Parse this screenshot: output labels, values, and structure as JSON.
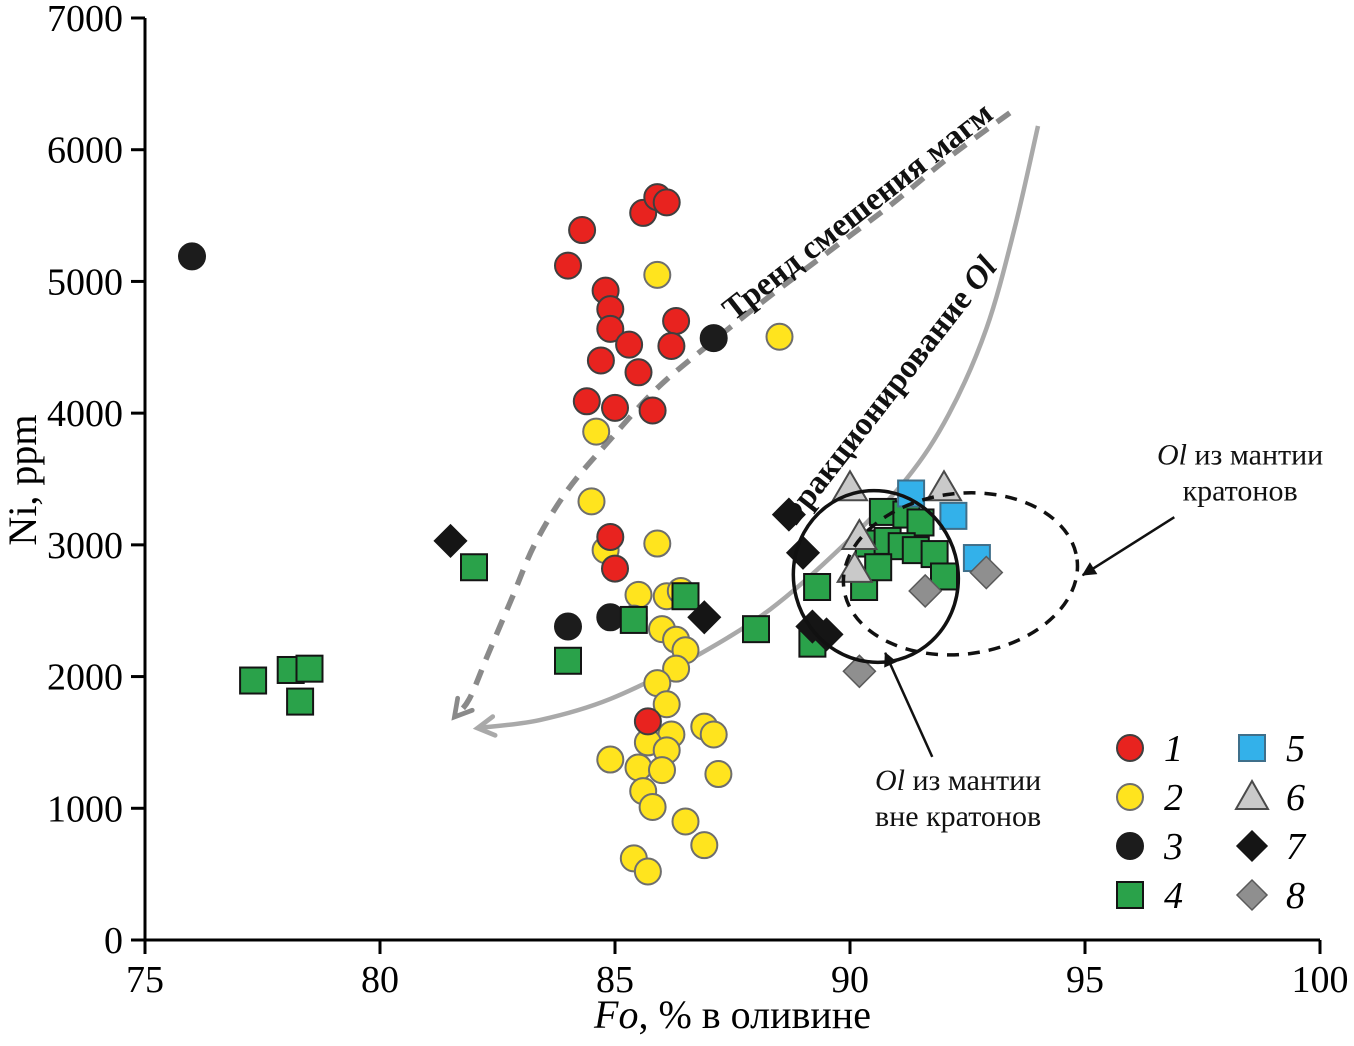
{
  "chart_data": {
    "type": "scatter",
    "title": "",
    "xlabel_italic": "Fo",
    "xlabel_rest": ", % в оливине",
    "ylabel": "Ni, ppm",
    "xlim": [
      75,
      100
    ],
    "ylim": [
      0,
      7000
    ],
    "xticks": [
      75,
      80,
      85,
      90,
      95,
      100
    ],
    "yticks": [
      0,
      1000,
      2000,
      3000,
      4000,
      5000,
      6000,
      7000
    ],
    "grid": false,
    "series": [
      {
        "name": "1",
        "marker": "circle",
        "fill": "#e8231f",
        "stroke": "#3f3f3f",
        "points": [
          [
            84.3,
            5390
          ],
          [
            84.0,
            5120
          ],
          [
            85.6,
            5520
          ],
          [
            85.9,
            5640
          ],
          [
            86.1,
            5600
          ],
          [
            84.8,
            4930
          ],
          [
            84.9,
            4790
          ],
          [
            84.9,
            4640
          ],
          [
            86.3,
            4700
          ],
          [
            85.3,
            4520
          ],
          [
            86.2,
            4510
          ],
          [
            84.7,
            4400
          ],
          [
            85.5,
            4310
          ],
          [
            84.4,
            4090
          ],
          [
            85.0,
            4040
          ],
          [
            85.8,
            4020
          ],
          [
            84.9,
            3060
          ],
          [
            85.0,
            2820
          ],
          [
            85.7,
            1660
          ]
        ]
      },
      {
        "name": "2",
        "marker": "circle",
        "fill": "#ffe41e",
        "stroke": "#6e6e6e",
        "points": [
          [
            85.9,
            5050
          ],
          [
            88.5,
            4580
          ],
          [
            84.6,
            3860
          ],
          [
            84.5,
            3330
          ],
          [
            85.9,
            3010
          ],
          [
            84.8,
            2960
          ],
          [
            85.5,
            2620
          ],
          [
            86.1,
            2610
          ],
          [
            86.4,
            2650
          ],
          [
            85.4,
            2440
          ],
          [
            86.0,
            2360
          ],
          [
            86.3,
            2280
          ],
          [
            86.5,
            2200
          ],
          [
            86.3,
            2060
          ],
          [
            85.9,
            1950
          ],
          [
            86.1,
            1790
          ],
          [
            86.9,
            1620
          ],
          [
            86.2,
            1560
          ],
          [
            85.7,
            1500
          ],
          [
            86.1,
            1440
          ],
          [
            87.1,
            1560
          ],
          [
            84.9,
            1370
          ],
          [
            85.5,
            1310
          ],
          [
            86.0,
            1290
          ],
          [
            87.2,
            1260
          ],
          [
            85.6,
            1130
          ],
          [
            85.8,
            1010
          ],
          [
            86.5,
            900
          ],
          [
            86.9,
            720
          ],
          [
            85.4,
            620
          ],
          [
            85.7,
            520
          ]
        ]
      },
      {
        "name": "3",
        "marker": "circle",
        "fill": "#1c1c1c",
        "stroke": "#1c1c1c",
        "points": [
          [
            76.0,
            5190
          ],
          [
            87.1,
            4570
          ],
          [
            84.0,
            2380
          ],
          [
            84.9,
            2450
          ]
        ]
      },
      {
        "name": "4",
        "marker": "square",
        "fill": "#2aa24a",
        "stroke": "#141414",
        "points": [
          [
            77.3,
            1970
          ],
          [
            78.1,
            2050
          ],
          [
            78.5,
            2060
          ],
          [
            78.3,
            1810
          ],
          [
            82.0,
            2830
          ],
          [
            84.0,
            2120
          ],
          [
            85.4,
            2430
          ],
          [
            86.5,
            2610
          ],
          [
            88.0,
            2360
          ],
          [
            89.2,
            2250
          ],
          [
            89.3,
            2680
          ],
          [
            90.3,
            2680
          ],
          [
            90.7,
            3250
          ],
          [
            91.2,
            3230
          ],
          [
            91.5,
            3170
          ],
          [
            90.4,
            3010
          ],
          [
            90.8,
            3030
          ],
          [
            91.1,
            2990
          ],
          [
            91.4,
            2960
          ],
          [
            91.8,
            2930
          ],
          [
            90.6,
            2830
          ],
          [
            92.0,
            2760
          ]
        ]
      },
      {
        "name": "5",
        "marker": "square",
        "fill": "#33b1ea",
        "stroke": "#3f6f8a",
        "points": [
          [
            91.3,
            3390
          ],
          [
            92.2,
            3220
          ],
          [
            92.7,
            2900
          ]
        ]
      },
      {
        "name": "6",
        "marker": "triangle",
        "fill": "#c9c9c9",
        "stroke": "#4a4a4a",
        "points": [
          [
            90.0,
            3430
          ],
          [
            92.0,
            3430
          ],
          [
            90.2,
            3060
          ],
          [
            90.1,
            2810
          ]
        ]
      },
      {
        "name": "7",
        "marker": "diamond",
        "fill": "#151515",
        "stroke": "#151515",
        "points": [
          [
            81.5,
            3030
          ],
          [
            88.7,
            3230
          ],
          [
            89.0,
            2940
          ],
          [
            86.9,
            2450
          ],
          [
            89.2,
            2380
          ],
          [
            89.5,
            2320
          ]
        ]
      },
      {
        "name": "8",
        "marker": "diamond",
        "fill": "#8f8f8f",
        "stroke": "#5a5a5a",
        "points": [
          [
            91.6,
            2650
          ],
          [
            92.9,
            2790
          ],
          [
            90.2,
            2040
          ]
        ]
      }
    ],
    "trends": [
      {
        "id": "mixing-trend",
        "style": "dashed",
        "color": "#8a8a8a",
        "width": 5.5,
        "label": "Тренд смешения магм",
        "label_italic": "",
        "label_pos": [
          90.3,
          5470
        ],
        "label_rotation": -38,
        "points": [
          [
            93.4,
            6280
          ],
          [
            92.1,
            5940
          ],
          [
            90.9,
            5590
          ],
          [
            89.6,
            5240
          ],
          [
            88.3,
            4890
          ],
          [
            87.1,
            4550
          ],
          [
            85.9,
            4190
          ],
          [
            84.9,
            3800
          ],
          [
            84.0,
            3420
          ],
          [
            83.3,
            3010
          ],
          [
            82.8,
            2590
          ],
          [
            82.3,
            2170
          ],
          [
            81.9,
            1830
          ],
          [
            81.6,
            1700
          ]
        ]
      },
      {
        "id": "fractionation-trend",
        "style": "solid",
        "color": "#a9a9a9",
        "width": 4.5,
        "label": "Фракционирование ",
        "label_italic": "Ol",
        "label_pos": [
          90.95,
          4100
        ],
        "label_rotation": -52,
        "points": [
          [
            94.0,
            6180
          ],
          [
            93.5,
            5400
          ],
          [
            92.9,
            4640
          ],
          [
            92.1,
            3990
          ],
          [
            91.2,
            3500
          ],
          [
            89.9,
            3010
          ],
          [
            88.3,
            2510
          ],
          [
            86.6,
            2130
          ],
          [
            84.9,
            1830
          ],
          [
            83.4,
            1670
          ],
          [
            82.1,
            1610
          ]
        ]
      }
    ],
    "ellipses": [
      {
        "id": "noncraton-ellipse",
        "style": "solid",
        "color": "#111111",
        "cx": 90.55,
        "cy": 2760,
        "rx_fo": 1.75,
        "ry_ni": 654,
        "rotation": -15
      },
      {
        "id": "craton-ellipse",
        "style": "dashed",
        "color": "#111111",
        "cx": 92.35,
        "cy": 2780,
        "rx_fo": 2.5,
        "ry_ni": 610,
        "rotation": -7
      }
    ],
    "annotations": [
      {
        "id": "craton-label",
        "line1_italic": "Ol",
        "line1_rest": " из мантии",
        "line2": "кратонов",
        "anchor": [
          98.3,
          3610
        ],
        "arrow_from": [
          96.9,
          3210
        ],
        "arrow_to": [
          94.95,
          2770
        ]
      },
      {
        "id": "noncraton-label",
        "line1_italic": "Ol",
        "line1_rest": " из мантии",
        "line2": "вне кратонов",
        "anchor": [
          92.3,
          1140
        ],
        "arrow_from": [
          91.75,
          1390
        ],
        "arrow_to": [
          90.75,
          2180
        ]
      }
    ],
    "legend": {
      "items": [
        {
          "label": "1",
          "marker": "circle",
          "fill": "#e8231f",
          "stroke": "#3f3f3f"
        },
        {
          "label": "2",
          "marker": "circle",
          "fill": "#ffe41e",
          "stroke": "#6e6e6e"
        },
        {
          "label": "3",
          "marker": "circle",
          "fill": "#1c1c1c",
          "stroke": "#1c1c1c"
        },
        {
          "label": "4",
          "marker": "square",
          "fill": "#2aa24a",
          "stroke": "#141414"
        },
        {
          "label": "5",
          "marker": "square",
          "fill": "#33b1ea",
          "stroke": "#3f6f8a"
        },
        {
          "label": "6",
          "marker": "triangle",
          "fill": "#c9c9c9",
          "stroke": "#4a4a4a"
        },
        {
          "label": "7",
          "marker": "diamond",
          "fill": "#151515",
          "stroke": "#151515"
        },
        {
          "label": "8",
          "marker": "diamond",
          "fill": "#8f8f8f",
          "stroke": "#5a5a5a"
        }
      ]
    },
    "colors": {
      "axis": "#000000",
      "text": "#000000",
      "annotation_arrow": "#111111"
    }
  }
}
